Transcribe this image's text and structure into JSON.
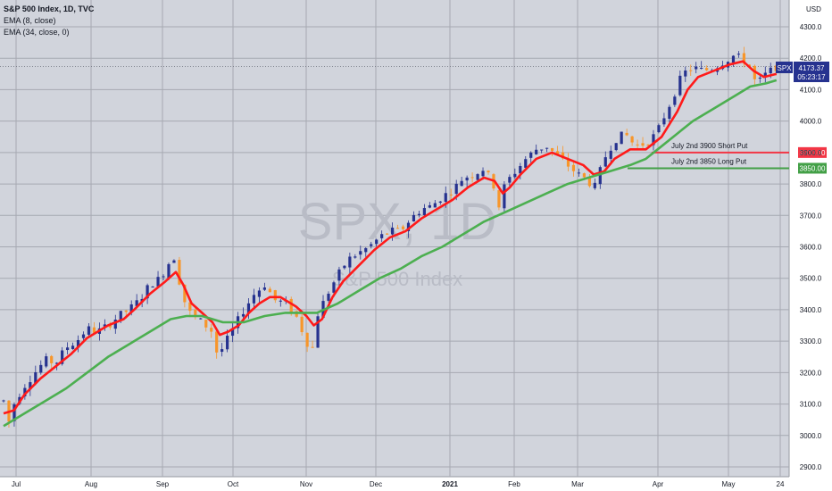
{
  "legend": {
    "title": "S&P 500 Index, 1D, TVC",
    "ema8": "EMA (8, close)",
    "ema34": "EMA (34, close, 0)"
  },
  "watermark": {
    "symbol": "SPX, 1D",
    "name": "S&P 500 Index"
  },
  "currency_label": "USD",
  "price_tag": {
    "symbol": "SPX",
    "price": "4173.37",
    "countdown": "05:23:17"
  },
  "colors": {
    "background": "#d1d4dc",
    "up": "#26328f",
    "down": "#f7962b",
    "ema8": "#ff1a1a",
    "ema34": "#4caf50",
    "short_put": "#f23645",
    "long_put": "#43a047"
  },
  "chart_data": {
    "type": "candlestick",
    "y_axis": {
      "label": "USD",
      "ylim": [
        2880,
        4340
      ],
      "ticks": [
        2900,
        3000,
        3100,
        3200,
        3300,
        3400,
        3500,
        3600,
        3700,
        3800,
        3900,
        4000,
        4100,
        4200,
        4300
      ]
    },
    "x_axis": {
      "labels": [
        "Jul",
        "Aug",
        "Sep",
        "Oct",
        "Nov",
        "Dec",
        "2021",
        "Feb",
        "Mar",
        "Apr",
        "May",
        "24"
      ]
    },
    "grid": true,
    "price_series": {
      "name": "S&P 500 Index",
      "last": 4173.37,
      "path": [
        [
          0,
          3110
        ],
        [
          3,
          3020
        ],
        [
          10,
          3100
        ],
        [
          18,
          3150
        ],
        [
          30,
          3200
        ],
        [
          40,
          3240
        ],
        [
          50,
          3230
        ],
        [
          60,
          3280
        ],
        [
          70,
          3300
        ],
        [
          80,
          3340
        ],
        [
          90,
          3330
        ],
        [
          100,
          3350
        ],
        [
          110,
          3380
        ],
        [
          120,
          3400
        ],
        [
          130,
          3430
        ],
        [
          140,
          3480
        ],
        [
          150,
          3500
        ],
        [
          160,
          3560
        ],
        [
          165,
          3570
        ],
        [
          170,
          3450
        ],
        [
          180,
          3380
        ],
        [
          190,
          3360
        ],
        [
          200,
          3330
        ],
        [
          205,
          3250
        ],
        [
          210,
          3280
        ],
        [
          220,
          3340
        ],
        [
          230,
          3400
        ],
        [
          240,
          3450
        ],
        [
          250,
          3480
        ],
        [
          260,
          3430
        ],
        [
          270,
          3420
        ],
        [
          280,
          3380
        ],
        [
          290,
          3300
        ],
        [
          295,
          3260
        ],
        [
          300,
          3380
        ],
        [
          310,
          3450
        ],
        [
          320,
          3510
        ],
        [
          330,
          3560
        ],
        [
          340,
          3580
        ],
        [
          350,
          3600
        ],
        [
          360,
          3630
        ],
        [
          370,
          3650
        ],
        [
          380,
          3650
        ],
        [
          390,
          3690
        ],
        [
          400,
          3720
        ],
        [
          410,
          3730
        ],
        [
          420,
          3760
        ],
        [
          430,
          3780
        ],
        [
          440,
          3820
        ],
        [
          450,
          3830
        ],
        [
          460,
          3850
        ],
        [
          470,
          3790
        ],
        [
          475,
          3720
        ],
        [
          480,
          3800
        ],
        [
          490,
          3840
        ],
        [
          500,
          3880
        ],
        [
          510,
          3910
        ],
        [
          520,
          3920
        ],
        [
          530,
          3890
        ],
        [
          540,
          3860
        ],
        [
          550,
          3830
        ],
        [
          560,
          3810
        ],
        [
          565,
          3780
        ],
        [
          575,
          3880
        ],
        [
          585,
          3940
        ],
        [
          595,
          3960
        ],
        [
          605,
          3920
        ],
        [
          615,
          3930
        ],
        [
          625,
          3960
        ],
        [
          640,
          4070
        ],
        [
          650,
          4150
        ],
        [
          660,
          4170
        ],
        [
          670,
          4160
        ],
        [
          680,
          4170
        ],
        [
          690,
          4190
        ],
        [
          700,
          4210
        ],
        [
          710,
          4190
        ],
        [
          715,
          4170
        ],
        [
          720,
          4120
        ],
        [
          725,
          4130
        ],
        [
          730,
          4150
        ],
        [
          740,
          4173
        ]
      ]
    },
    "overlays": [
      {
        "name": "EMA (8, close)",
        "color": "#ff1a1a",
        "path": [
          [
            0,
            3070
          ],
          [
            10,
            3080
          ],
          [
            20,
            3130
          ],
          [
            35,
            3180
          ],
          [
            50,
            3220
          ],
          [
            65,
            3260
          ],
          [
            80,
            3310
          ],
          [
            100,
            3350
          ],
          [
            115,
            3370
          ],
          [
            125,
            3400
          ],
          [
            140,
            3450
          ],
          [
            155,
            3490
          ],
          [
            165,
            3520
          ],
          [
            172,
            3480
          ],
          [
            180,
            3420
          ],
          [
            190,
            3390
          ],
          [
            200,
            3360
          ],
          [
            207,
            3320
          ],
          [
            215,
            3330
          ],
          [
            225,
            3350
          ],
          [
            235,
            3390
          ],
          [
            245,
            3420
          ],
          [
            255,
            3440
          ],
          [
            265,
            3440
          ],
          [
            280,
            3410
          ],
          [
            290,
            3380
          ],
          [
            297,
            3350
          ],
          [
            305,
            3370
          ],
          [
            315,
            3440
          ],
          [
            325,
            3490
          ],
          [
            340,
            3540
          ],
          [
            355,
            3590
          ],
          [
            370,
            3630
          ],
          [
            385,
            3650
          ],
          [
            400,
            3690
          ],
          [
            415,
            3720
          ],
          [
            430,
            3750
          ],
          [
            445,
            3790
          ],
          [
            460,
            3820
          ],
          [
            470,
            3810
          ],
          [
            478,
            3770
          ],
          [
            485,
            3790
          ],
          [
            495,
            3830
          ],
          [
            510,
            3880
          ],
          [
            525,
            3900
          ],
          [
            540,
            3880
          ],
          [
            555,
            3860
          ],
          [
            565,
            3830
          ],
          [
            575,
            3840
          ],
          [
            585,
            3880
          ],
          [
            600,
            3910
          ],
          [
            615,
            3910
          ],
          [
            630,
            3950
          ],
          [
            645,
            4030
          ],
          [
            655,
            4100
          ],
          [
            665,
            4140
          ],
          [
            680,
            4160
          ],
          [
            695,
            4180
          ],
          [
            708,
            4190
          ],
          [
            718,
            4160
          ],
          [
            728,
            4140
          ],
          [
            740,
            4150
          ]
        ]
      },
      {
        "name": "EMA (34, close, 0)",
        "color": "#4caf50",
        "path": [
          [
            0,
            3030
          ],
          [
            20,
            3070
          ],
          [
            40,
            3110
          ],
          [
            60,
            3150
          ],
          [
            80,
            3200
          ],
          [
            100,
            3250
          ],
          [
            120,
            3290
          ],
          [
            140,
            3330
          ],
          [
            160,
            3370
          ],
          [
            175,
            3380
          ],
          [
            190,
            3380
          ],
          [
            210,
            3360
          ],
          [
            230,
            3360
          ],
          [
            250,
            3380
          ],
          [
            270,
            3390
          ],
          [
            285,
            3390
          ],
          [
            300,
            3390
          ],
          [
            320,
            3420
          ],
          [
            340,
            3460
          ],
          [
            360,
            3500
          ],
          [
            380,
            3530
          ],
          [
            400,
            3570
          ],
          [
            420,
            3600
          ],
          [
            440,
            3640
          ],
          [
            460,
            3680
          ],
          [
            480,
            3710
          ],
          [
            500,
            3740
          ],
          [
            520,
            3770
          ],
          [
            540,
            3800
          ],
          [
            560,
            3820
          ],
          [
            580,
            3840
          ],
          [
            600,
            3860
          ],
          [
            615,
            3880
          ],
          [
            630,
            3920
          ],
          [
            645,
            3960
          ],
          [
            660,
            4000
          ],
          [
            680,
            4040
          ],
          [
            700,
            4080
          ],
          [
            715,
            4110
          ],
          [
            730,
            4120
          ],
          [
            740,
            4130
          ]
        ]
      }
    ],
    "annotations": [
      {
        "text": "July 2nd 3900 Short Put",
        "price": 3900,
        "label": "3900.00",
        "color": "#f23645"
      },
      {
        "text": "July 2nd 3850 Long Put",
        "price": 3850,
        "label": "3850.00",
        "color": "#43a047"
      }
    ]
  }
}
